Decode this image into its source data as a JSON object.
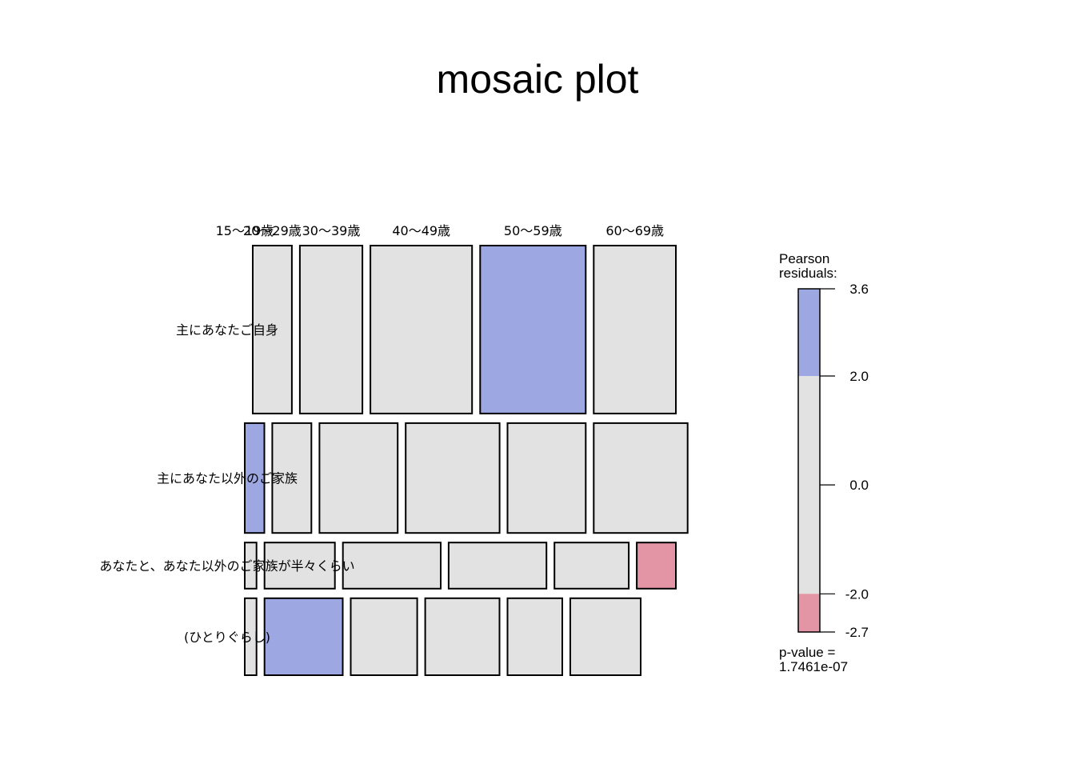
{
  "chart_data": {
    "type": "mosaic",
    "title": "mosaic plot",
    "columns": [
      "15〜19歳",
      "20〜29歳",
      "30〜39歳",
      "40〜49歳",
      "50〜59歳",
      "60〜69歳"
    ],
    "rows": [
      "主にあなたご自身",
      "主にあなた以外のご家族",
      "あなたと、あなた以外のご家族が半々くらい",
      "(ひとりぐらし)"
    ],
    "row_proportions": [
      0.419,
      0.274,
      0.115,
      0.192
    ],
    "cells": [
      [
        0.0,
        0.1,
        0.16,
        0.26,
        0.27,
        0.21
      ],
      [
        0.05,
        0.1,
        0.2,
        0.24,
        0.2,
        0.24
      ],
      [
        0.03,
        0.18,
        0.25,
        0.25,
        0.19,
        0.1
      ],
      [
        0.03,
        0.2,
        0.17,
        0.19,
        0.14,
        0.18
      ]
    ],
    "cell_residual_class": [
      [
        "neutral",
        "neutral",
        "neutral",
        "neutral",
        "positive",
        "neutral"
      ],
      [
        "positive",
        "neutral",
        "neutral",
        "neutral",
        "neutral",
        "neutral"
      ],
      [
        "neutral",
        "neutral",
        "neutral",
        "neutral",
        "neutral",
        "negative"
      ],
      [
        "neutral",
        "positive",
        "neutral",
        "neutral",
        "neutral",
        "neutral"
      ]
    ],
    "legend": {
      "title_line1": "Pearson",
      "title_line2": "residuals:",
      "max": 3.6,
      "min": -2.7,
      "ticks": [
        3.6,
        2.0,
        0.0,
        -2.0,
        -2.7
      ],
      "tick_labels": [
        "3.6",
        "2.0",
        "0.0",
        "-2.0",
        "-2.7"
      ],
      "pvalue_line1": "p-value =",
      "pvalue_line2": "1.7461e-07"
    },
    "colors": {
      "positive": "#9DA8E2",
      "neutral": "#E2E2E2",
      "negative": "#E495A5",
      "border": "#000000"
    }
  }
}
